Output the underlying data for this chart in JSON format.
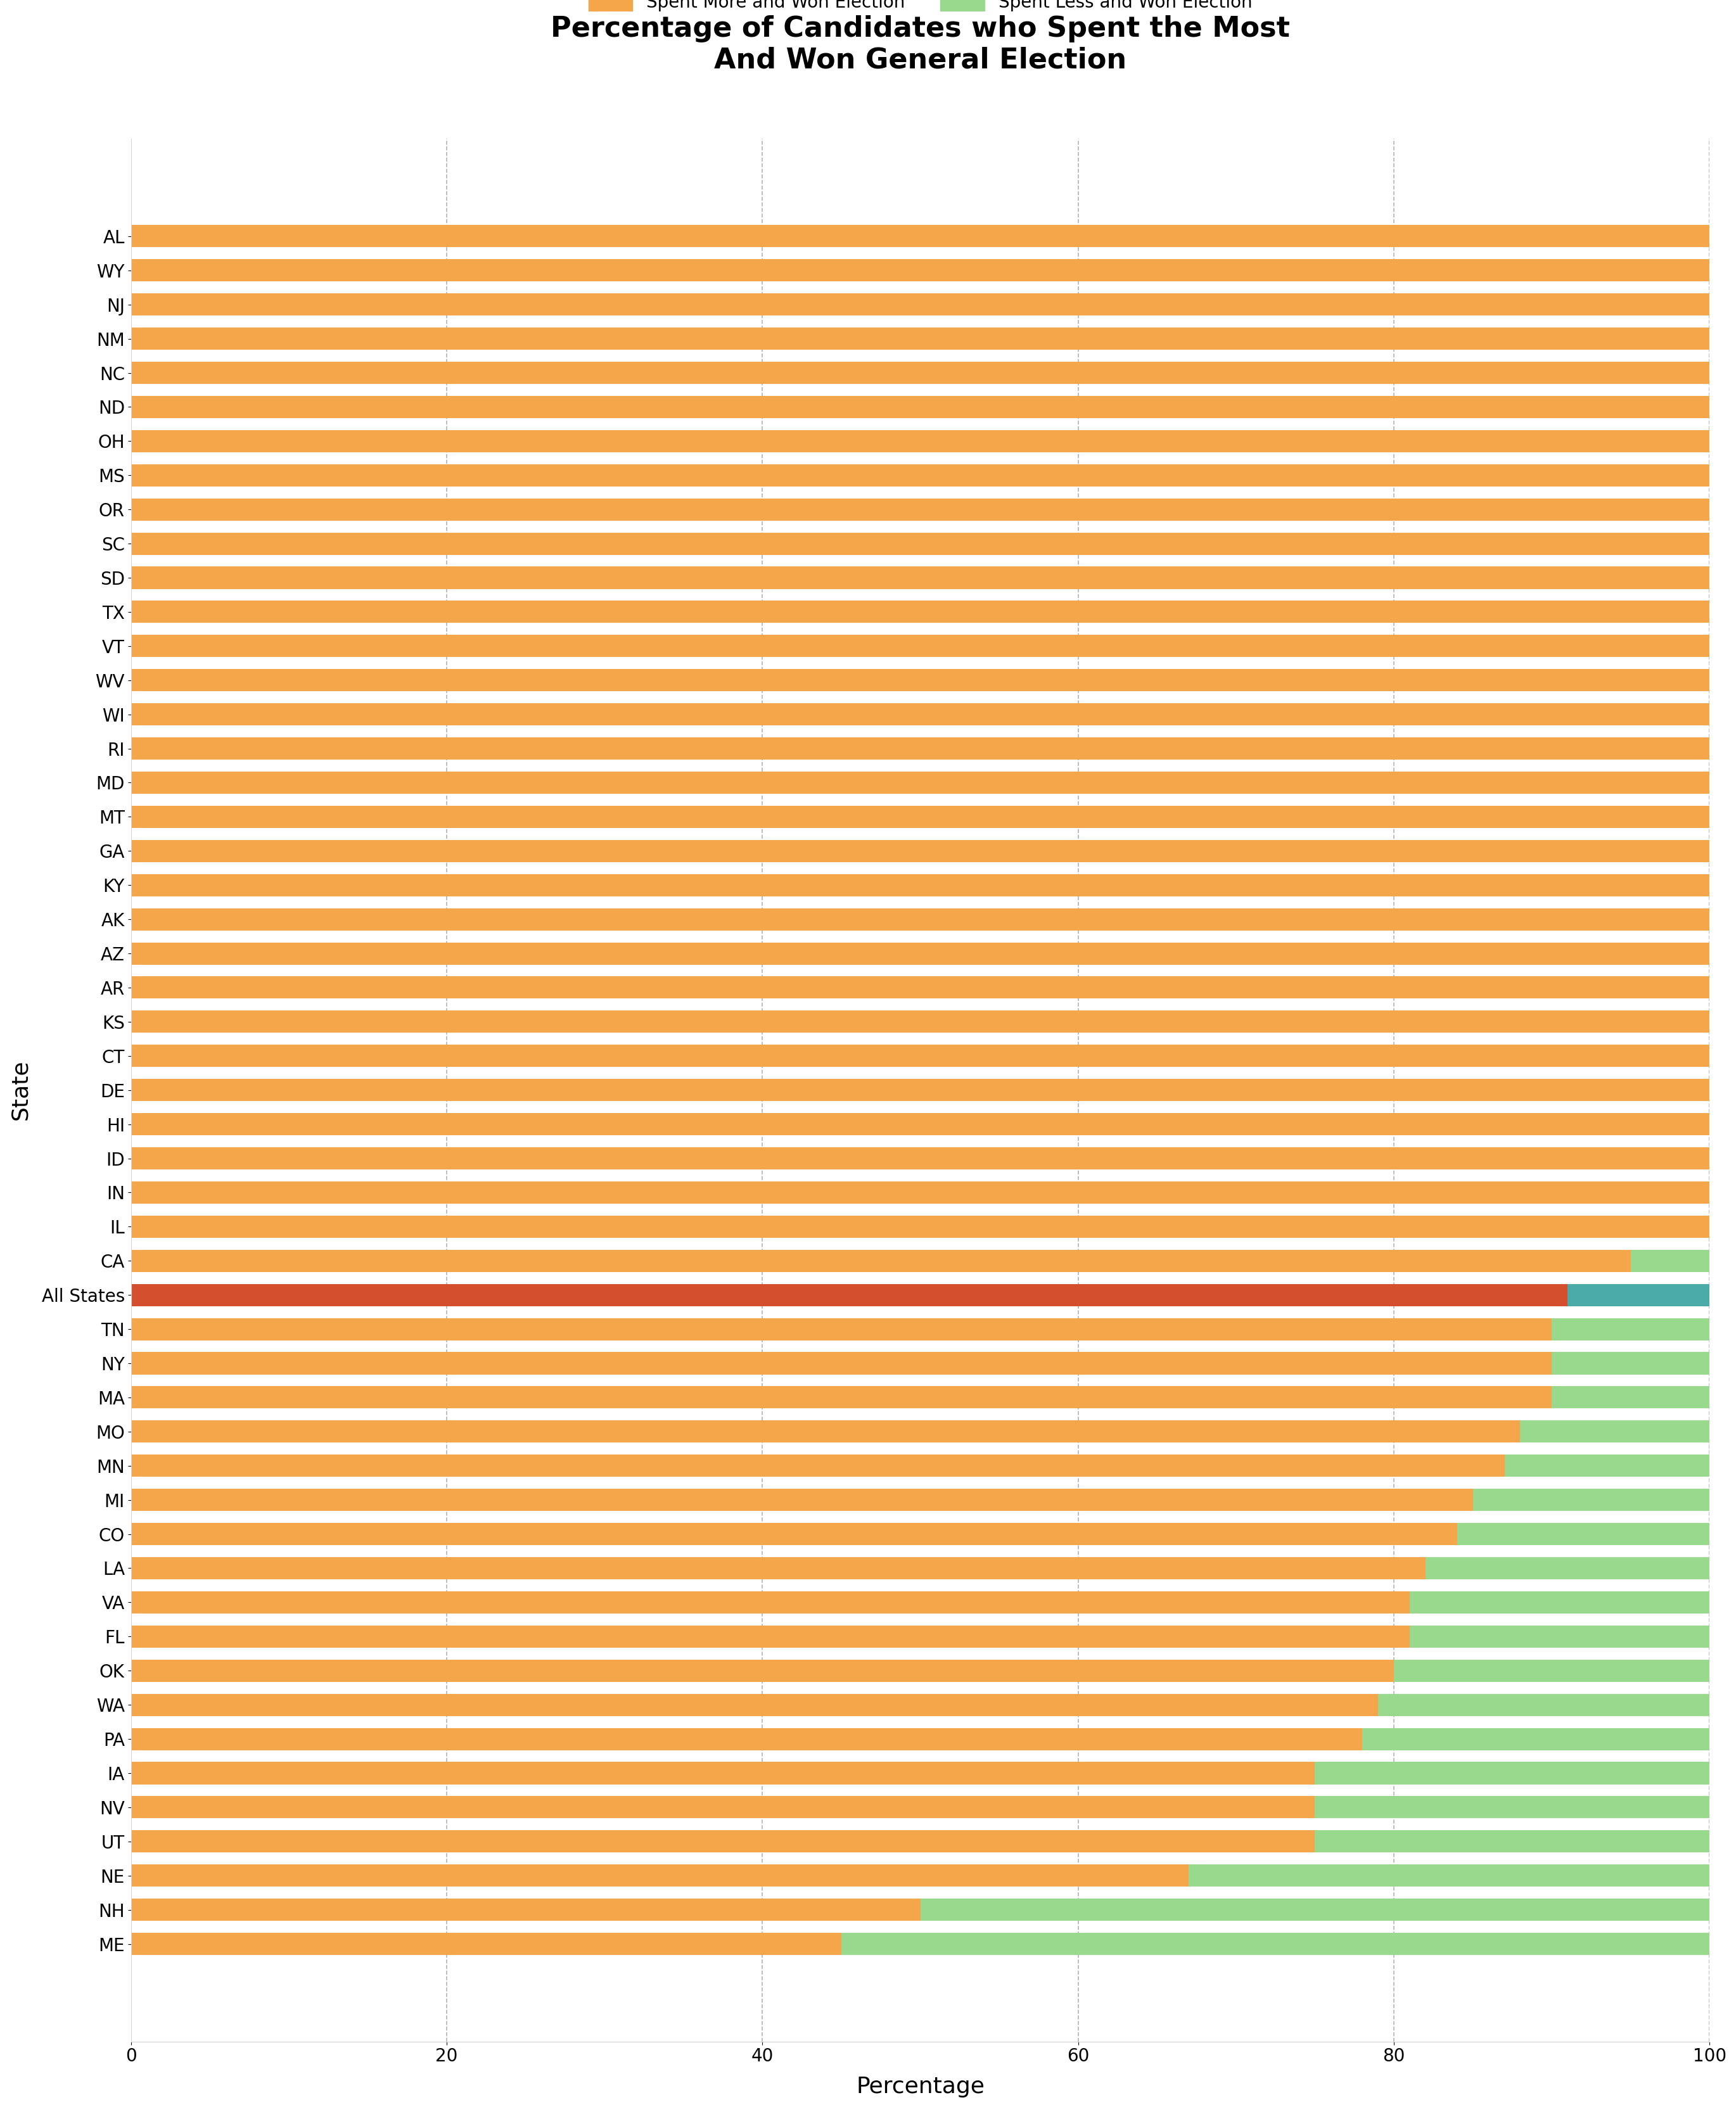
{
  "title": "Percentage of Candidates who Spent the Most\nAnd Won General Election",
  "xlabel": "Percentage",
  "ylabel": "State",
  "states": [
    "AL",
    "WY",
    "NJ",
    "NM",
    "NC",
    "ND",
    "OH",
    "MS",
    "OR",
    "SC",
    "SD",
    "TX",
    "VT",
    "WV",
    "WI",
    "RI",
    "MD",
    "MT",
    "GA",
    "KY",
    "AK",
    "AZ",
    "AR",
    "KS",
    "CT",
    "DE",
    "HI",
    "ID",
    "IN",
    "IL",
    "CA",
    "All States",
    "TN",
    "NY",
    "MA",
    "MO",
    "MN",
    "MI",
    "CO",
    "LA",
    "VA",
    "FL",
    "OK",
    "WA",
    "PA",
    "IA",
    "NV",
    "UT",
    "NE",
    "NH",
    "ME"
  ],
  "spent_more_won": [
    100,
    100,
    100,
    100,
    100,
    100,
    100,
    100,
    100,
    100,
    100,
    100,
    100,
    100,
    100,
    100,
    100,
    100,
    100,
    100,
    100,
    100,
    100,
    100,
    100,
    100,
    100,
    100,
    100,
    100,
    95,
    91,
    90,
    90,
    90,
    88,
    87,
    85,
    84,
    82,
    81,
    81,
    80,
    79,
    78,
    75,
    75,
    75,
    67,
    50,
    45
  ],
  "spent_less_won": [
    0,
    0,
    0,
    0,
    0,
    0,
    0,
    0,
    0,
    0,
    0,
    0,
    0,
    0,
    0,
    0,
    0,
    0,
    0,
    0,
    0,
    0,
    0,
    0,
    0,
    0,
    0,
    0,
    0,
    0,
    5,
    9,
    10,
    10,
    10,
    12,
    13,
    15,
    16,
    18,
    19,
    19,
    20,
    21,
    22,
    25,
    25,
    25,
    33,
    50,
    55
  ],
  "color_more": "#f5a54a",
  "color_less": "#98d98e",
  "color_all_states_more": "#d44f2e",
  "color_all_states_less": "#4aaba8",
  "legend_label_more": "Spent More and Won Election",
  "legend_label_less": "Spent Less and Won Election"
}
